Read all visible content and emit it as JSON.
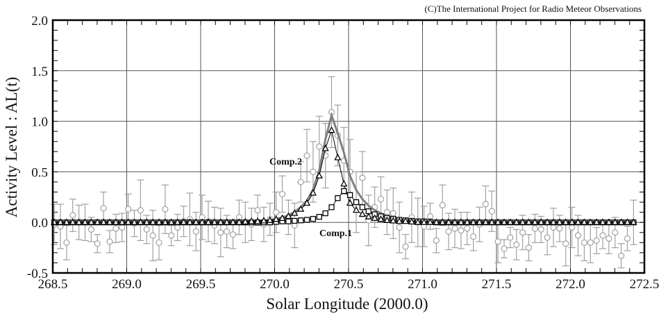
{
  "chart_data": {
    "type": "scatter",
    "title": "",
    "credit": "(C)The International Project for Radio Meteor Observations",
    "xlabel": "Solar Longitude (2000.0)",
    "ylabel": "Activity Level : AL(t)",
    "xlim": [
      268.5,
      272.5
    ],
    "ylim": [
      -0.5,
      2.0
    ],
    "grid": true,
    "x_ticks": [
      "268.5",
      "269.0",
      "269.5",
      "270.0",
      "270.5",
      "271.0",
      "271.5",
      "272.0",
      "272.5"
    ],
    "y_ticks": [
      "-0.5",
      "0.0",
      "0.5",
      "1.0",
      "1.5",
      "2.0"
    ],
    "annotations": {
      "comp2": "Comp.2",
      "comp1": "Comp.1"
    },
    "x": {
      "start": 268.51,
      "step": 0.041667,
      "count": 95
    },
    "observed": [
      -0.02,
      -0.04,
      -0.2,
      0.07,
      0,
      0,
      -0.07,
      -0.21,
      0.14,
      -0.19,
      -0.06,
      -0.05,
      0.13,
      -0.01,
      0.12,
      -0.07,
      -0.13,
      -0.2,
      0.13,
      -0.13,
      -0.05,
      0.01,
      0.03,
      -0.09,
      0.05,
      0.01,
      -0.03,
      -0.1,
      -0.09,
      -0.12,
      0.05,
      0,
      -0.02,
      0.12,
      -0.02,
      0.03,
      0.1,
      0.28,
      0.05,
      -0.03,
      0.4,
      0.66,
      0.5,
      0.75,
      0.66,
      1.09,
      0.86,
      0.61,
      0.5,
      0.2,
      0.44,
      0.02,
      0.15,
      0.23,
      0.1,
      0.09,
      -0.05,
      -0.24,
      0.05,
      0,
      -0.04,
      0.06,
      -0.18,
      0.17,
      -0.09,
      -0.06,
      -0.08,
      -0.06,
      -0.14,
      -0.02,
      0.18,
      0.11,
      -0.19,
      -0.26,
      -0.15,
      -0.22,
      -0.1,
      -0.25,
      -0.06,
      -0.07,
      -0.15,
      -0.05,
      -0.06,
      -0.21,
      -0.05,
      -0.13,
      -0.2,
      -0.2,
      -0.18,
      -0.13,
      -0.16,
      -0.1,
      -0.33,
      -0.16,
      0
    ],
    "error": [
      0.2,
      0.22,
      0.17,
      0.16,
      0.17,
      0.18,
      0.12,
      0.09,
      0.16,
      0.11,
      0.14,
      0.14,
      0.15,
      0.13,
      0.3,
      0.14,
      0.25,
      0.17,
      0.24,
      0.1,
      0.13,
      0.15,
      0.26,
      0.19,
      0.22,
      0.2,
      0.18,
      0.24,
      0.16,
      0.14,
      0.17,
      0.2,
      0.16,
      0.15,
      0.17,
      0.16,
      0.2,
      0.18,
      0.17,
      0.22,
      0.2,
      0.26,
      0.3,
      0.3,
      0.32,
      0.35,
      0.3,
      0.33,
      0.32,
      0.3,
      0.26,
      0.25,
      0.2,
      0.22,
      0.22,
      0.25,
      0.25,
      0.12,
      0.25,
      0.24,
      0.2,
      0.13,
      0.12,
      0.2,
      0.18,
      0.19,
      0.18,
      0.16,
      0.14,
      0.17,
      0.18,
      0.2,
      0.21,
      0.09,
      0.1,
      0.15,
      0.17,
      0.13,
      0.14,
      0.13,
      0.17,
      0.19,
      0.13,
      0.22,
      0.2,
      0.2,
      0.18,
      0.2,
      0.13,
      0.13,
      0.15,
      0.15,
      0.12,
      0.12,
      0.22
    ],
    "series": [
      {
        "name": "Comp.2",
        "marker": "triangle",
        "values": [
          0,
          0,
          0,
          0,
          0,
          0,
          0,
          0,
          0,
          0,
          0,
          0,
          0,
          0,
          0,
          0,
          0,
          0,
          0,
          0,
          0,
          0,
          0,
          0,
          0,
          0,
          0,
          0,
          0,
          0,
          0,
          0.005,
          0.01,
          0.01,
          0.015,
          0.02,
          0.03,
          0.04,
          0.06,
          0.09,
          0.13,
          0.19,
          0.29,
          0.46,
          0.73,
          0.91,
          0.64,
          0.38,
          0.19,
          0.12,
          0.08,
          0.055,
          0.04,
          0.03,
          0.02,
          0.015,
          0.01,
          0.01,
          0.005,
          0,
          0,
          0,
          0,
          0,
          0,
          0,
          0,
          0,
          0,
          0,
          0,
          0,
          0,
          0,
          0,
          0,
          0,
          0,
          0,
          0,
          0,
          0,
          0,
          0,
          0,
          0,
          0,
          0,
          0,
          0,
          0,
          0,
          0,
          0,
          0
        ]
      },
      {
        "name": "Comp.1",
        "marker": "square",
        "values": [
          0,
          0,
          0,
          0,
          0,
          0,
          0,
          0,
          0,
          0,
          0,
          0,
          0,
          0,
          0,
          0,
          0,
          0,
          0,
          0,
          0,
          0,
          0,
          0,
          0,
          0,
          0,
          0,
          0,
          0,
          0,
          0,
          0,
          0,
          0,
          0,
          0.005,
          0.01,
          0.01,
          0.015,
          0.02,
          0.025,
          0.035,
          0.055,
          0.09,
          0.15,
          0.24,
          0.31,
          0.27,
          0.2,
          0.15,
          0.11,
          0.08,
          0.06,
          0.045,
          0.035,
          0.025,
          0.02,
          0.015,
          0.01,
          0.01,
          0.005,
          0,
          0,
          0,
          0,
          0,
          0,
          0,
          0,
          0,
          0,
          0,
          0,
          0,
          0,
          0,
          0,
          0,
          0,
          0,
          0,
          0,
          0,
          0,
          0,
          0,
          0,
          0,
          0,
          0,
          0,
          0,
          0,
          0
        ]
      }
    ],
    "colors": {
      "observed": "#a0a0a0",
      "total": "#808080",
      "components": "#000000",
      "grid": "#555555"
    }
  }
}
